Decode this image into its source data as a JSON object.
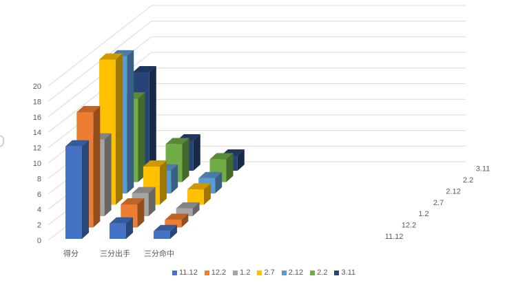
{
  "chart_data": {
    "type": "bar",
    "subtype": "3d-column",
    "title": "",
    "xlabel": "",
    "ylabel": "",
    "ylim": [
      0,
      20
    ],
    "yticks": [
      0,
      2,
      4,
      6,
      8,
      10,
      12,
      14,
      16,
      18,
      20
    ],
    "categories": [
      "得分",
      "三分出手",
      "三分命中"
    ],
    "depth_labels": [
      "11.12",
      "12.2",
      "1.2",
      "2.7",
      "2.12",
      "2.2",
      "3.11"
    ],
    "series": [
      {
        "name": "11.12",
        "color": "#4472C4",
        "values": [
          12,
          2,
          1
        ]
      },
      {
        "name": "12.2",
        "color": "#ED7D31",
        "values": [
          15,
          3,
          1
        ]
      },
      {
        "name": "1.2",
        "color": "#A5A5A5",
        "values": [
          10,
          3,
          1
        ]
      },
      {
        "name": "2.7",
        "color": "#FFC000",
        "values": [
          19,
          5,
          2
        ]
      },
      {
        "name": "2.12",
        "color": "#5B9BD5",
        "values": [
          18,
          3,
          2
        ]
      },
      {
        "name": "2.2",
        "color": "#70AD47",
        "values": [
          11,
          5,
          3
        ]
      },
      {
        "name": "3.11",
        "color": "#264478",
        "values": [
          13,
          4,
          2
        ]
      }
    ],
    "grid": true,
    "legend_position": "bottom"
  },
  "legend": [
    {
      "label": "11.12",
      "color": "#4472C4"
    },
    {
      "label": "12.2",
      "color": "#ED7D31"
    },
    {
      "label": "1.2",
      "color": "#A5A5A5"
    },
    {
      "label": "2.7",
      "color": "#FFC000"
    },
    {
      "label": "2.12",
      "color": "#5B9BD5"
    },
    {
      "label": "2.2",
      "color": "#70AD47"
    },
    {
      "label": "3.11",
      "color": "#264478"
    }
  ]
}
